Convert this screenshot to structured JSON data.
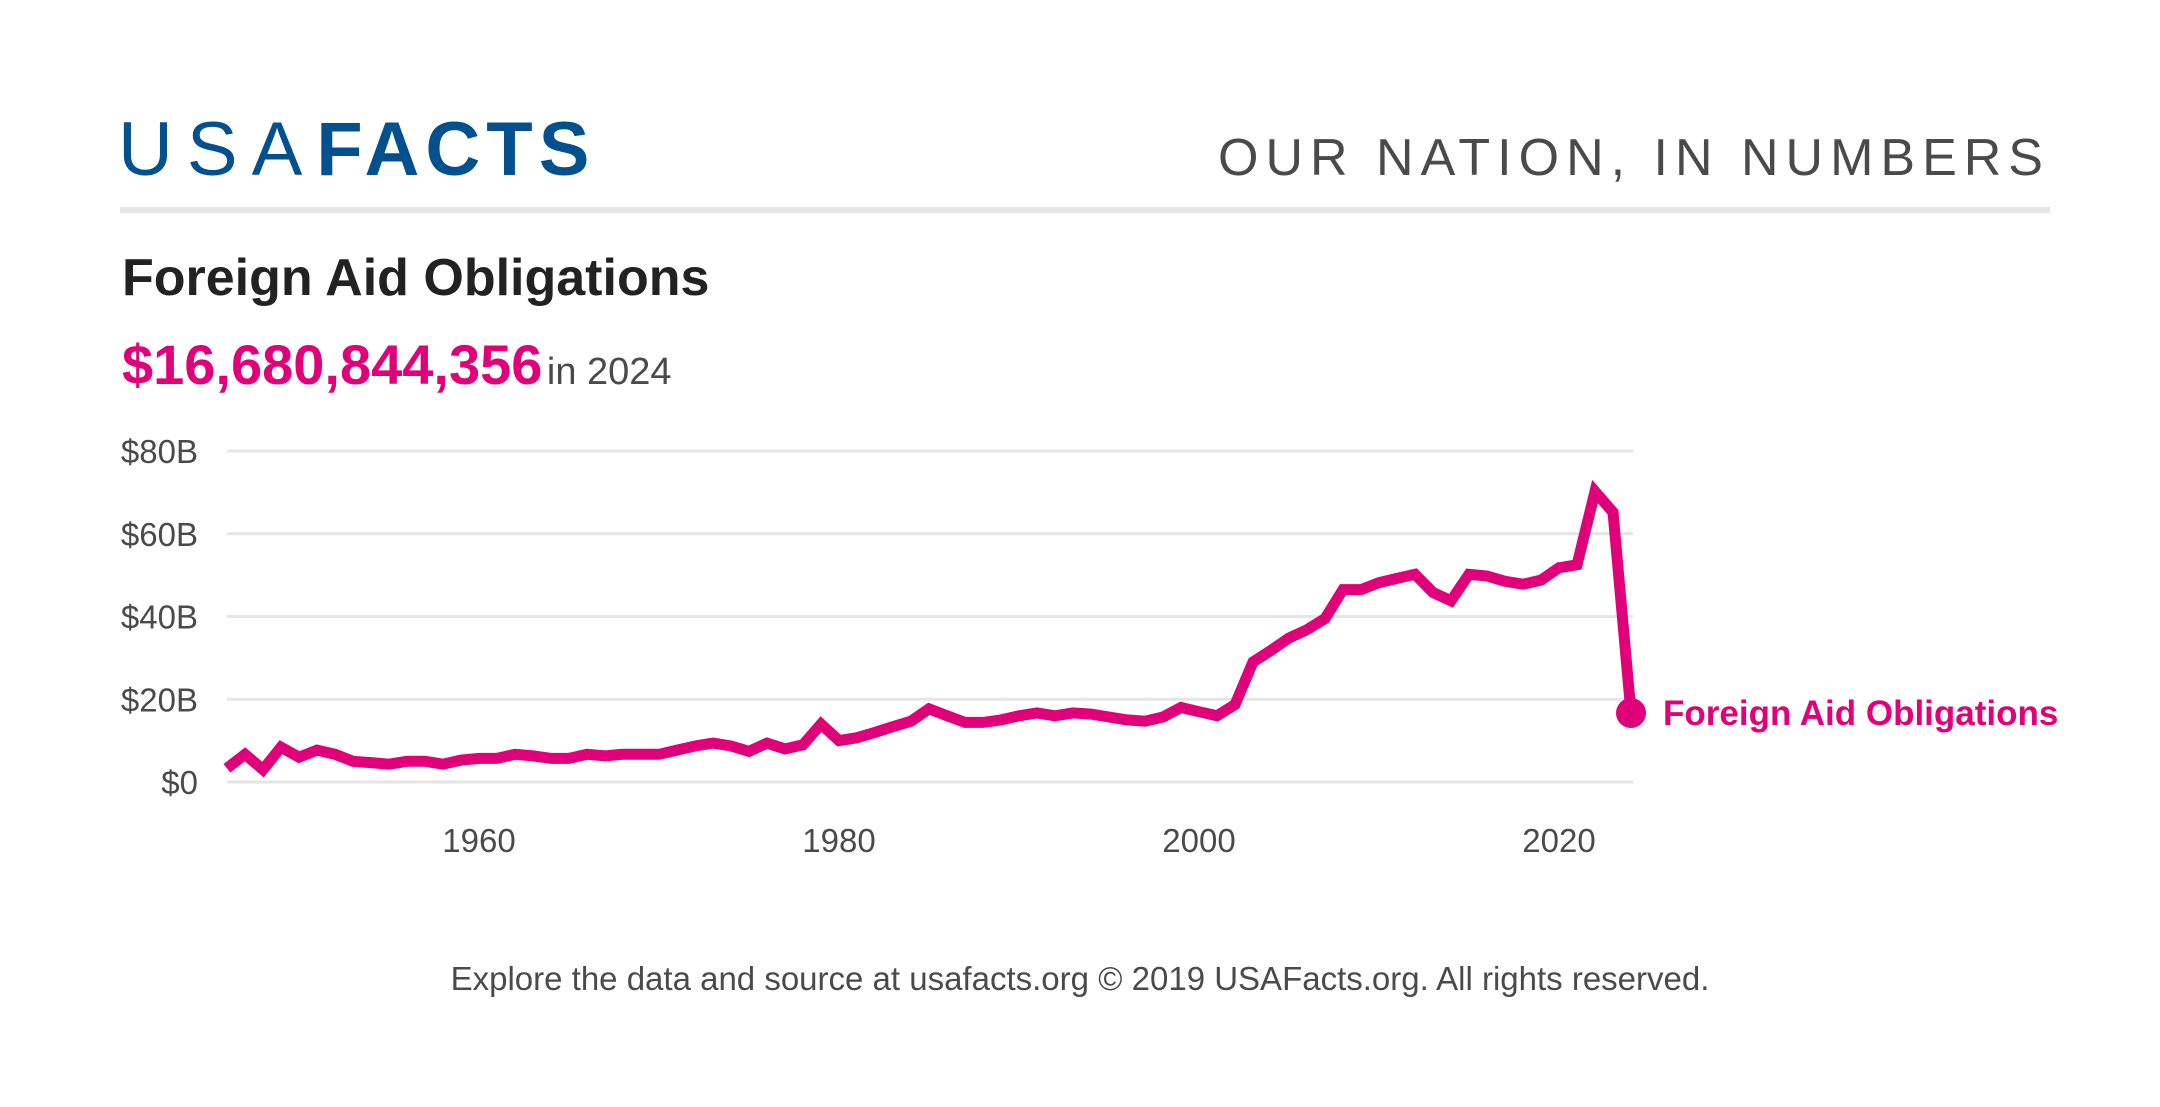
{
  "header": {
    "logo_light": "USA",
    "logo_bold": "FACTS",
    "tagline": "OUR NATION, IN NUMBERS"
  },
  "title": "Foreign Aid Obligations",
  "headline": {
    "value": "$16,680,844,356",
    "suffix": "in 2024"
  },
  "footer": "Explore the data and source at usafacts.org © 2019 USAFacts.org. All rights reserved.",
  "colors": {
    "brand": "#03508f",
    "series": "#e0007a",
    "grid": "#e5e5e5",
    "text": "#4a4a4a"
  },
  "chart_data": {
    "type": "line",
    "title": "Foreign Aid Obligations",
    "xlim": [
      1946,
      2024
    ],
    "ylim": [
      0,
      80
    ],
    "grid": true,
    "legend": "end-of-line label",
    "y_ticks": [
      {
        "v": 0,
        "label": "$0"
      },
      {
        "v": 20,
        "label": "$20B"
      },
      {
        "v": 40,
        "label": "$40B"
      },
      {
        "v": 60,
        "label": "$60B"
      },
      {
        "v": 80,
        "label": "$80B"
      }
    ],
    "x_ticks": [
      {
        "v": 1960,
        "label": "1960"
      },
      {
        "v": 1980,
        "label": "1980"
      },
      {
        "v": 2000,
        "label": "2000"
      },
      {
        "v": 2020,
        "label": "2020"
      }
    ],
    "series": [
      {
        "name": "Foreign Aid Obligations",
        "unit": "billions USD",
        "x": [
          1946,
          1947,
          1948,
          1949,
          1950,
          1951,
          1952,
          1953,
          1954,
          1955,
          1956,
          1957,
          1958,
          1959,
          1960,
          1961,
          1962,
          1963,
          1964,
          1965,
          1966,
          1967,
          1968,
          1969,
          1970,
          1971,
          1972,
          1973,
          1974,
          1975,
          1976,
          1977,
          1978,
          1979,
          1980,
          1981,
          1982,
          1983,
          1984,
          1985,
          1986,
          1987,
          1988,
          1989,
          1990,
          1991,
          1992,
          1993,
          1994,
          1995,
          1996,
          1997,
          1998,
          1999,
          2000,
          2001,
          2002,
          2003,
          2004,
          2005,
          2006,
          2007,
          2008,
          2009,
          2010,
          2011,
          2012,
          2013,
          2014,
          2015,
          2016,
          2017,
          2018,
          2019,
          2020,
          2021,
          2022,
          2023,
          2024
        ],
        "values": [
          3.3,
          6.7,
          3.0,
          8.4,
          6.0,
          7.7,
          6.7,
          5.0,
          4.7,
          4.3,
          5.0,
          5.0,
          4.3,
          5.3,
          5.7,
          5.7,
          6.7,
          6.3,
          5.7,
          5.7,
          6.7,
          6.3,
          6.7,
          6.7,
          6.7,
          7.7,
          8.7,
          9.4,
          8.7,
          7.4,
          9.4,
          8.0,
          9.0,
          14.0,
          10.0,
          10.7,
          12.0,
          13.4,
          14.7,
          17.7,
          16.0,
          14.4,
          14.4,
          15.0,
          16.0,
          16.7,
          16.0,
          16.7,
          16.4,
          15.7,
          15.0,
          14.7,
          15.7,
          18.0,
          17.0,
          16.0,
          18.7,
          29.0,
          31.8,
          34.8,
          36.8,
          39.5,
          46.5,
          46.5,
          48.2,
          49.2,
          50.2,
          45.8,
          43.8,
          50.2,
          49.8,
          48.5,
          47.8,
          48.8,
          51.8,
          52.5,
          70.2,
          65.2,
          16.68
        ]
      }
    ]
  }
}
